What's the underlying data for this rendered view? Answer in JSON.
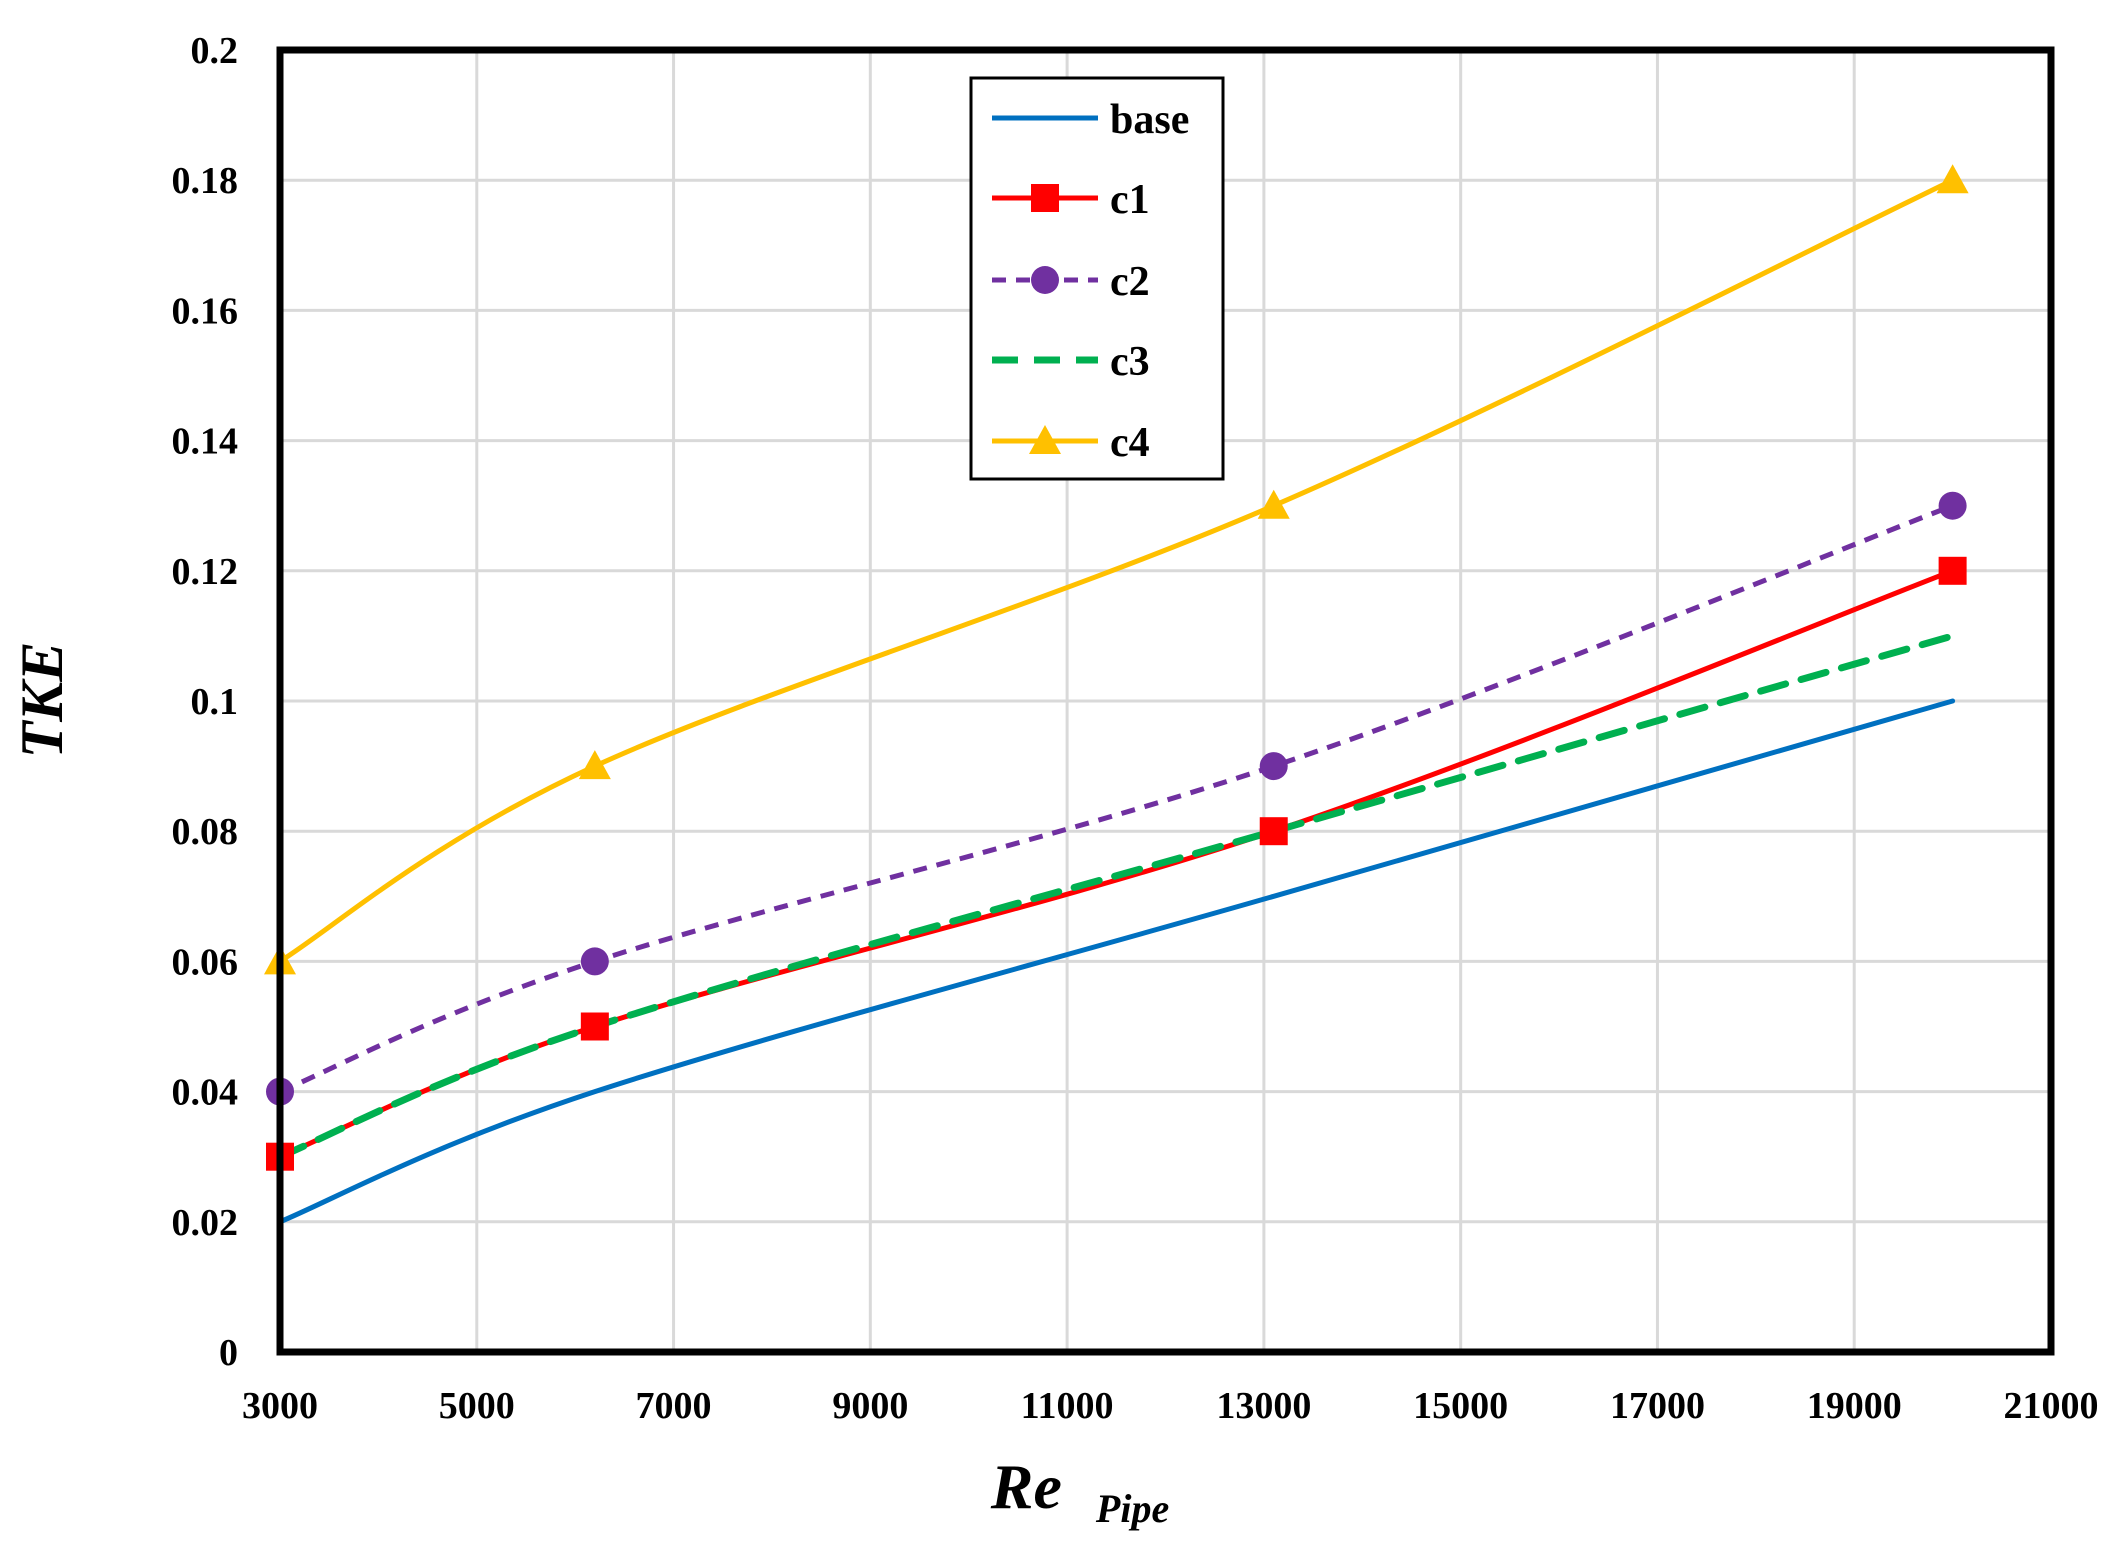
{
  "chart_data": {
    "type": "line",
    "title": "",
    "xlabel_main": "Re",
    "xlabel_sub": "Pipe",
    "ylabel": "TKE",
    "xlim": [
      3000,
      21000
    ],
    "ylim": [
      0,
      0.2
    ],
    "xticks": [
      3000,
      5000,
      7000,
      9000,
      11000,
      13000,
      15000,
      17000,
      19000,
      21000
    ],
    "xtick_labels": [
      "3000",
      "5000",
      "7000",
      "9000",
      "11000",
      "13000",
      "15000",
      "17000",
      "19000",
      "21000"
    ],
    "yticks": [
      0,
      0.02,
      0.04,
      0.06,
      0.08,
      0.1,
      0.12,
      0.14,
      0.16,
      0.18,
      0.2
    ],
    "ytick_labels": [
      "0",
      "0.02",
      "0.04",
      "0.06",
      "0.08",
      "0.1",
      "0.12",
      "0.14",
      "0.16",
      "0.18",
      "0.2"
    ],
    "grid": true,
    "legend_position": "top-center",
    "x": [
      3000,
      6200,
      13100,
      20000
    ],
    "series": [
      {
        "name": "base",
        "values": [
          0.02,
          0.04,
          0.07,
          0.1
        ],
        "color": "#0070C0",
        "dash": "solid",
        "marker": "none"
      },
      {
        "name": "c1",
        "values": [
          0.03,
          0.05,
          0.08,
          0.12
        ],
        "color": "#FF0000",
        "dash": "solid",
        "marker": "square"
      },
      {
        "name": "c2",
        "values": [
          0.04,
          0.06,
          0.09,
          0.13
        ],
        "color": "#7030A0",
        "dash": "dotted",
        "marker": "circle"
      },
      {
        "name": "c3",
        "values": [
          0.03,
          0.05,
          0.08,
          0.11
        ],
        "color": "#00B050",
        "dash": "dashed",
        "marker": "none"
      },
      {
        "name": "c4",
        "values": [
          0.06,
          0.09,
          0.13,
          0.18
        ],
        "color": "#FFC000",
        "dash": "solid",
        "marker": "triangle"
      }
    ]
  }
}
